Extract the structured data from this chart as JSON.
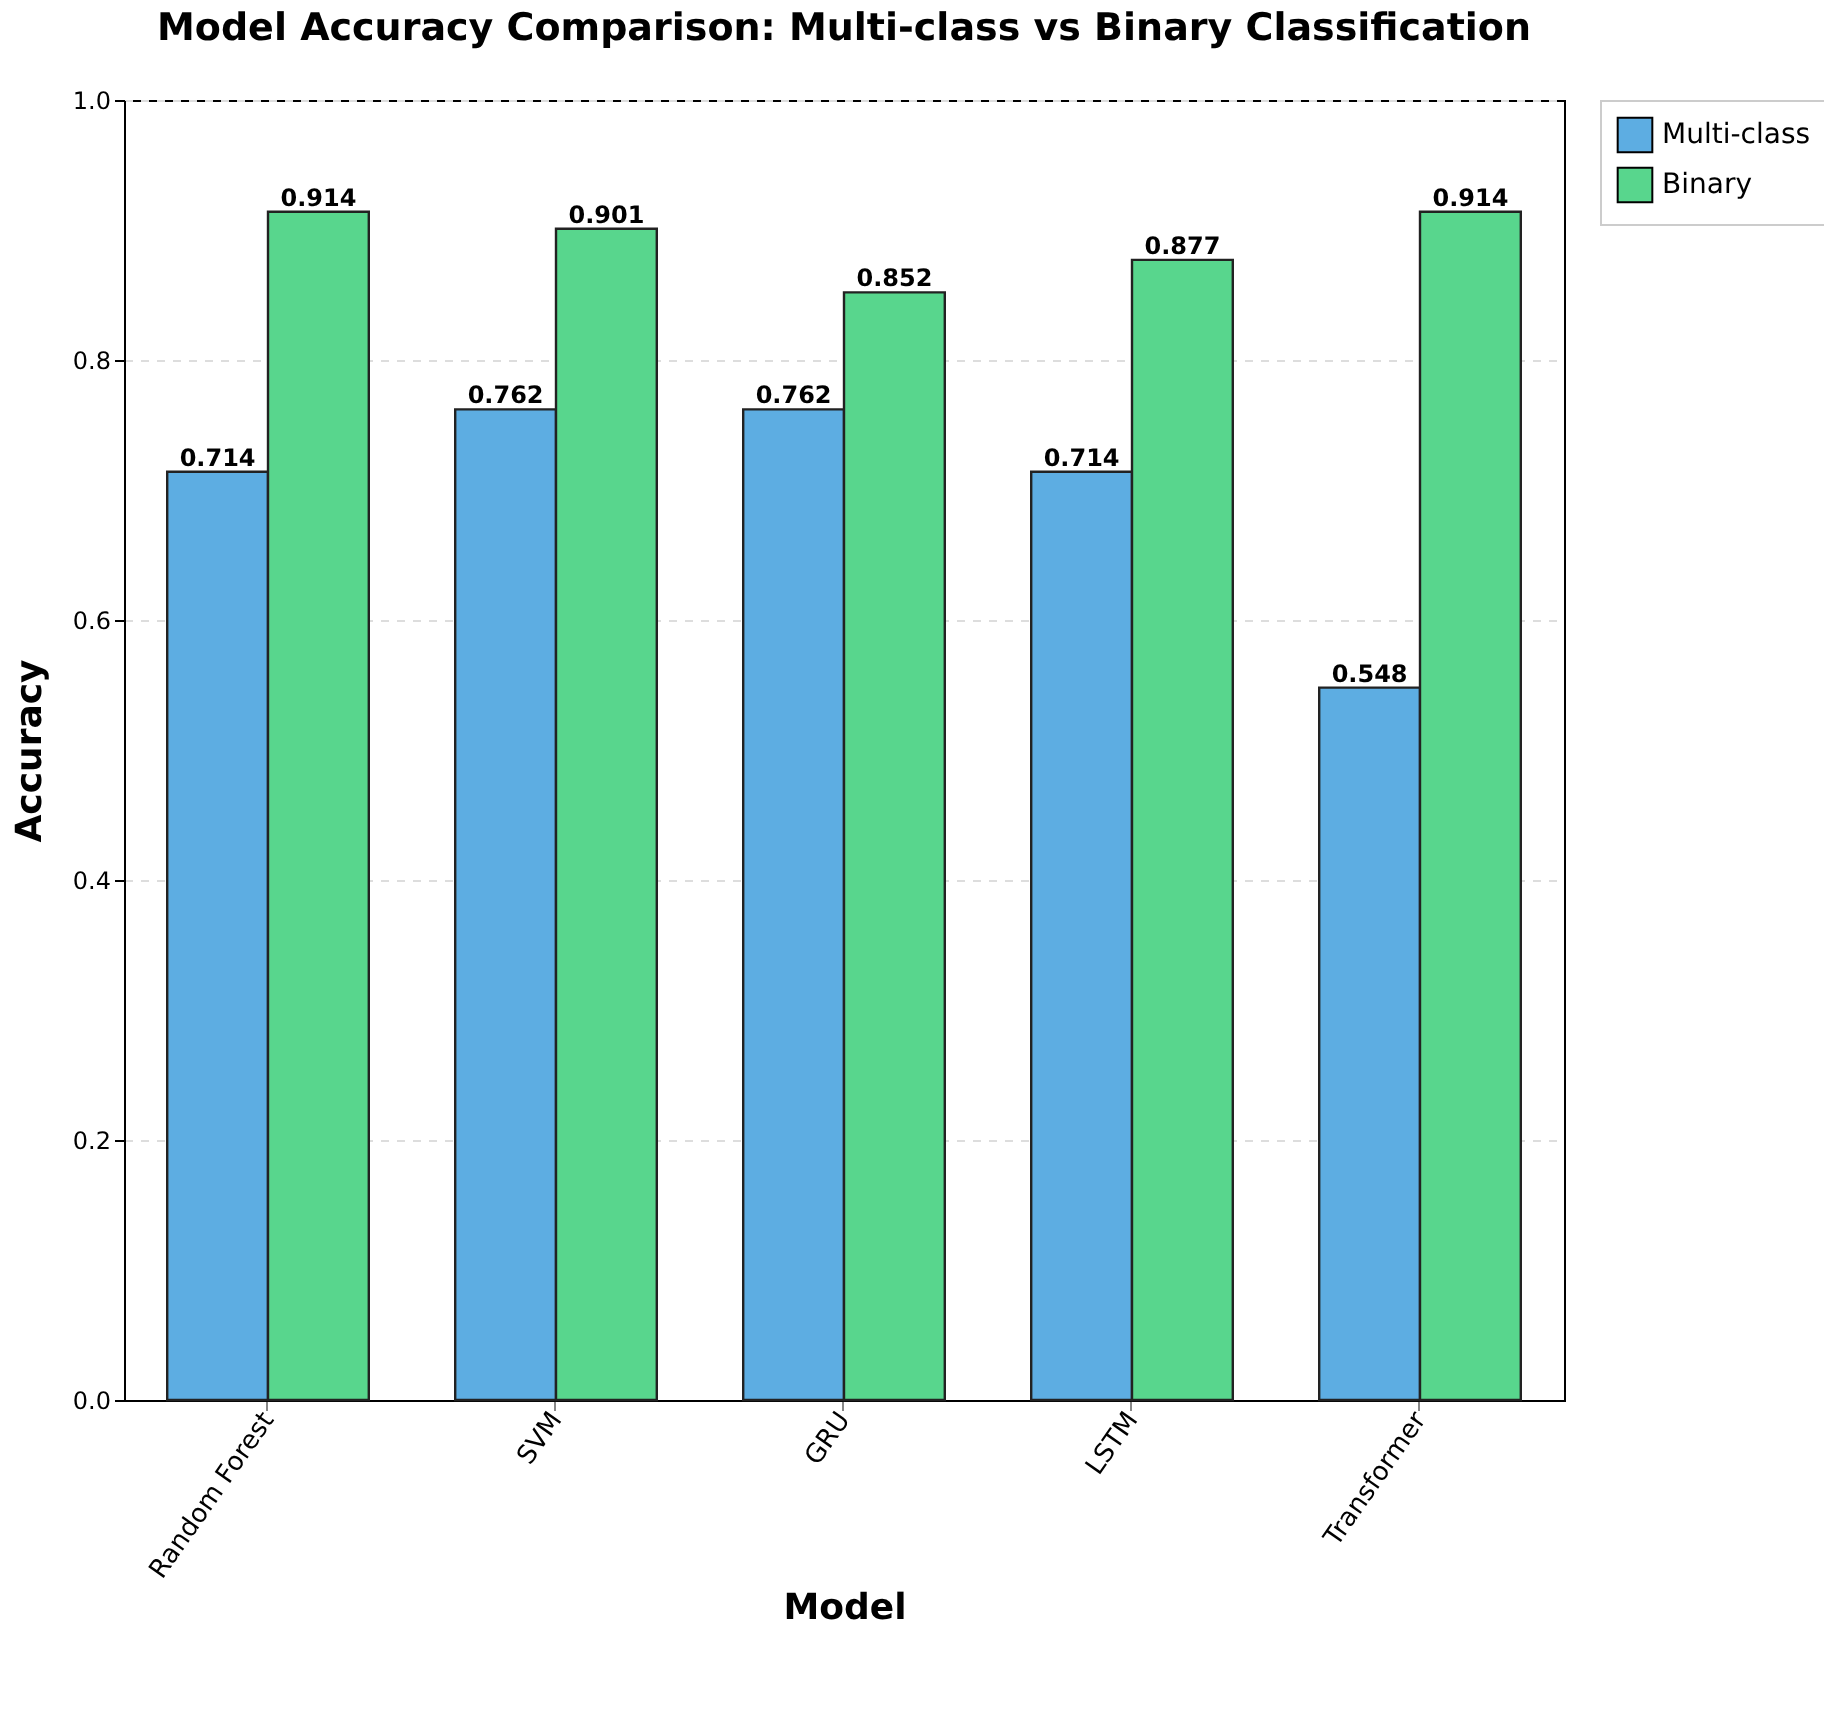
{
  "chart_data": {
    "type": "bar",
    "title": "Model Accuracy Comparison: Multi-class vs Binary Classification",
    "xlabel": "Model",
    "ylabel": "Accuracy",
    "categories": [
      "Random Forest",
      "SVM",
      "GRU",
      "LSTM",
      "Transformer"
    ],
    "series": [
      {
        "name": "Multi-class",
        "color": "#5dade2",
        "values": [
          0.714,
          0.762,
          0.762,
          0.714,
          0.548
        ]
      },
      {
        "name": "Binary",
        "color": "#58d68d",
        "values": [
          0.914,
          0.901,
          0.852,
          0.877,
          0.914
        ]
      }
    ],
    "ylim": [
      0,
      1.0
    ],
    "yticks": [
      {
        "value": 0,
        "label": "0.0"
      },
      0.2,
      0.4,
      0.6,
      0.8,
      {
        "value": 1,
        "label": "1.0"
      }
    ],
    "grid": "y",
    "legend": "top right",
    "data_labels": true
  }
}
